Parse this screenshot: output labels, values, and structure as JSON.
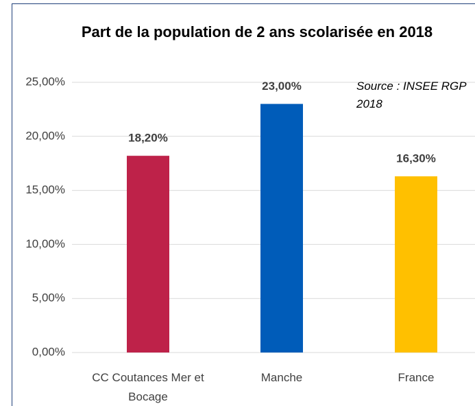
{
  "chart_data": {
    "type": "bar",
    "title": "Part de la population de 2 ans scolarisée en 2018",
    "annotation": "Source : INSEE RGP 2018",
    "categories": [
      "CC Coutances Mer et Bocage",
      "Manche",
      "France"
    ],
    "values": [
      18.2,
      23.0,
      16.3
    ],
    "value_labels": [
      "18,20%",
      "23,00%",
      "16,30%"
    ],
    "colors": [
      "#be2249",
      "#005cb9",
      "#ffc000"
    ],
    "ylim": [
      0,
      25
    ],
    "yticks": [
      {
        "value": 0,
        "label": "0,00%"
      },
      {
        "value": 5,
        "label": "5,00%"
      },
      {
        "value": 10,
        "label": "10,00%"
      },
      {
        "value": 15,
        "label": "15,00%"
      },
      {
        "value": 20,
        "label": "20,00%"
      },
      {
        "value": 25,
        "label": "25,00%"
      }
    ],
    "grid": true
  }
}
